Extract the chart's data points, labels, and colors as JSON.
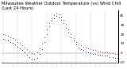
{
  "title": "Milwaukee Weather Outdoor Temperature (vs) Wind Chill (Last 24 Hours)",
  "outdoor_temp": [
    20,
    19,
    18,
    17,
    16,
    14,
    12,
    10,
    8,
    6,
    4,
    2,
    0,
    -1,
    1,
    5,
    10,
    17,
    25,
    32,
    37,
    40,
    42,
    41,
    38,
    35,
    30,
    25,
    20,
    16,
    12,
    10,
    8,
    7,
    6,
    5,
    4,
    3,
    3,
    2,
    2,
    1,
    1,
    1,
    0,
    0,
    -1,
    -1
  ],
  "wind_chill": [
    15,
    14,
    13,
    12,
    11,
    9,
    7,
    5,
    3,
    1,
    -2,
    -4,
    -6,
    -7,
    -5,
    -1,
    4,
    12,
    20,
    28,
    34,
    37,
    39,
    38,
    35,
    32,
    27,
    22,
    17,
    13,
    9,
    6,
    4,
    3,
    2,
    1,
    0,
    -1,
    -1,
    -2,
    -2,
    -3,
    -3,
    -3,
    -4,
    -4,
    -5,
    -5
  ],
  "n_points": 48,
  "ylim": [
    -10,
    45
  ],
  "ytick_values": [
    -10,
    -5,
    0,
    5,
    10,
    15,
    20,
    25,
    30,
    35,
    40,
    45
  ],
  "ytick_labels": [
    "-10",
    "",
    "0",
    "",
    "10",
    "",
    "20",
    "",
    "30",
    "",
    "40",
    ""
  ],
  "temp_color": "#cc0000",
  "chill_color": "#0000bb",
  "grid_color": "#aaaaaa",
  "bg_color": "#ffffff",
  "title_fontsize": 3.8,
  "tick_fontsize": 3.0,
  "dot_size": 1.2,
  "grid_interval": 6
}
